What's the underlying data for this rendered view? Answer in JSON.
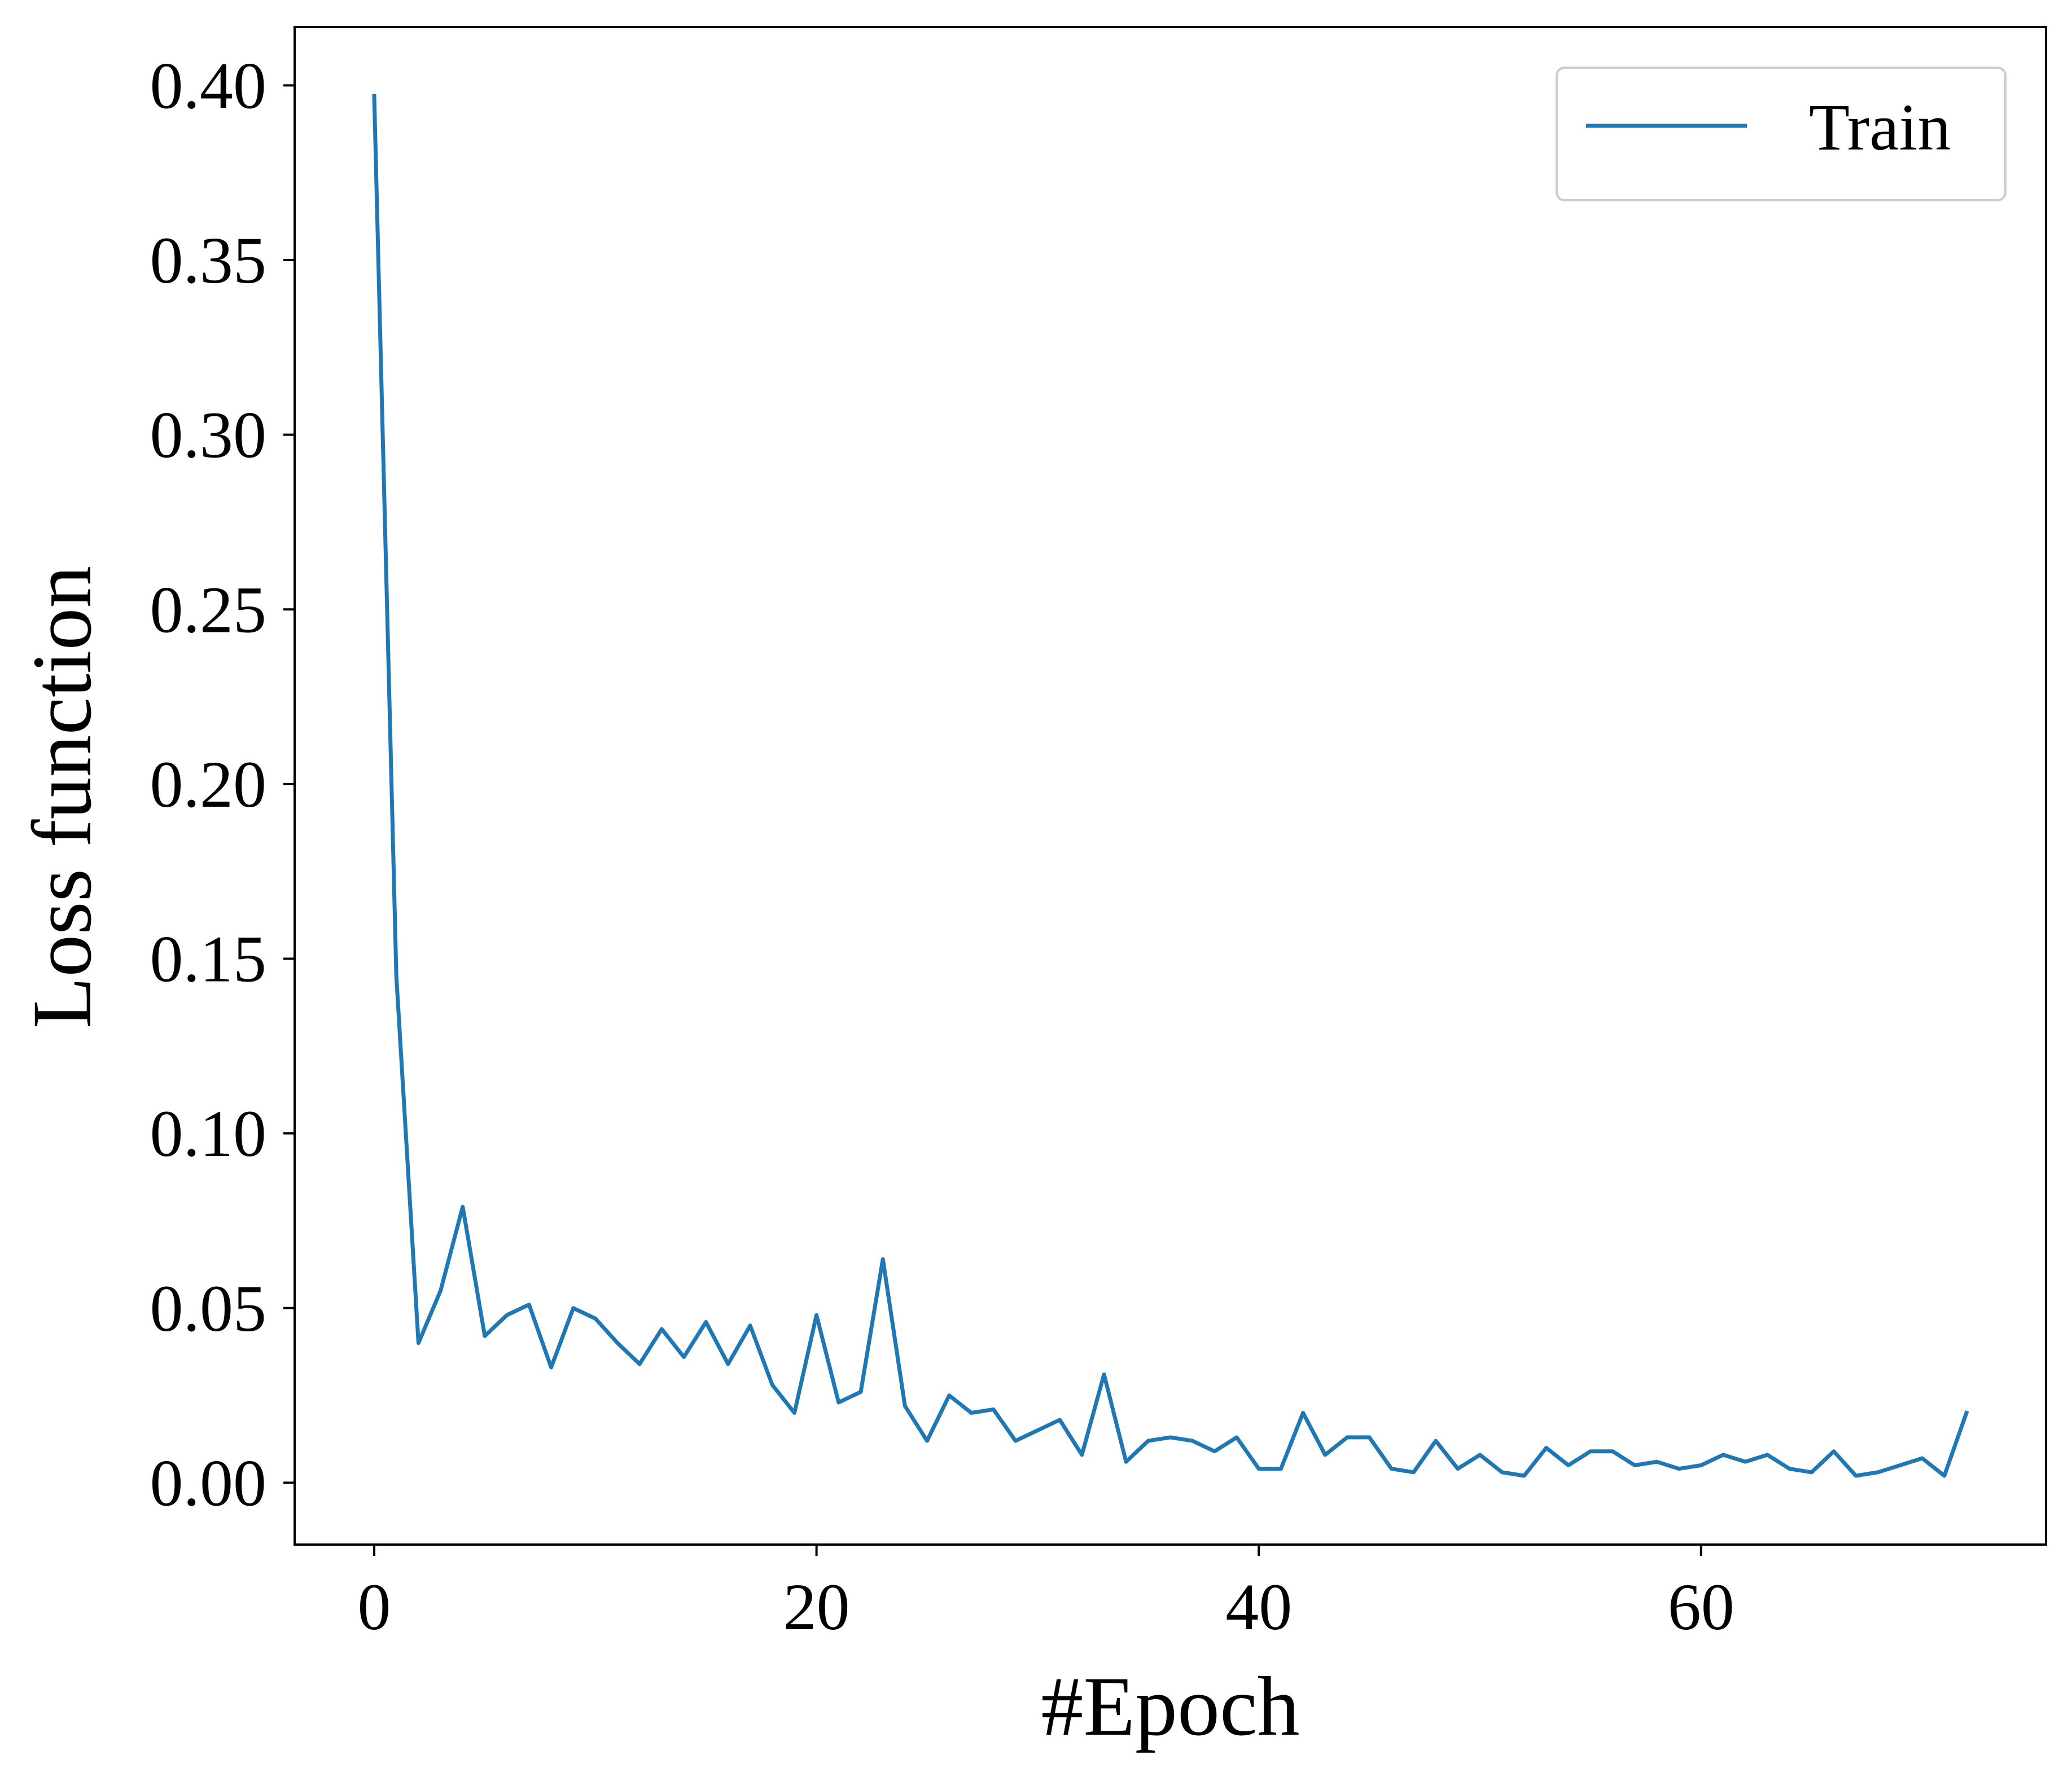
{
  "chart_data": {
    "type": "line",
    "title": "",
    "xlabel": "#Epoch",
    "ylabel": "Loss function",
    "xlim": [
      -3.6,
      75.6
    ],
    "ylim": [
      -0.0177,
      0.4167
    ],
    "xticks": [
      0,
      20,
      40,
      60
    ],
    "xtick_labels": [
      "0",
      "20",
      "40",
      "60"
    ],
    "yticks": [
      0.0,
      0.05,
      0.1,
      0.15,
      0.2,
      0.25,
      0.3,
      0.35,
      0.4
    ],
    "ytick_labels": [
      "0.00",
      "0.05",
      "0.10",
      "0.15",
      "0.20",
      "0.25",
      "0.30",
      "0.35",
      "0.40"
    ],
    "grid": false,
    "legend_position": "top-right",
    "colors": {
      "series": "#1f77b4",
      "axes": "#000000",
      "legend_border": "#cccccc"
    },
    "x": [
      0,
      1,
      2,
      3,
      4,
      5,
      6,
      7,
      8,
      9,
      10,
      11,
      12,
      13,
      14,
      15,
      16,
      17,
      18,
      19,
      20,
      21,
      22,
      23,
      24,
      25,
      26,
      27,
      28,
      29,
      30,
      31,
      32,
      33,
      34,
      35,
      36,
      37,
      38,
      39,
      40,
      41,
      42,
      43,
      44,
      45,
      46,
      47,
      48,
      49,
      50,
      51,
      52,
      53,
      54,
      55,
      56,
      57,
      58,
      59,
      60,
      61,
      62,
      63,
      64,
      65,
      66,
      67,
      68,
      69,
      70,
      71,
      72
    ],
    "series": [
      {
        "name": "Train",
        "values": [
          0.397,
          0.145,
          0.04,
          0.055,
          0.079,
          0.042,
          0.048,
          0.051,
          0.033,
          0.05,
          0.047,
          0.04,
          0.034,
          0.044,
          0.036,
          0.046,
          0.034,
          0.045,
          0.028,
          0.02,
          0.048,
          0.023,
          0.026,
          0.064,
          0.022,
          0.012,
          0.025,
          0.02,
          0.021,
          0.012,
          0.015,
          0.018,
          0.008,
          0.031,
          0.006,
          0.012,
          0.013,
          0.012,
          0.009,
          0.013,
          0.004,
          0.004,
          0.02,
          0.008,
          0.013,
          0.013,
          0.004,
          0.003,
          0.012,
          0.004,
          0.008,
          0.003,
          0.002,
          0.01,
          0.005,
          0.009,
          0.009,
          0.005,
          0.006,
          0.004,
          0.005,
          0.008,
          0.006,
          0.008,
          0.004,
          0.003,
          0.009,
          0.002,
          0.003,
          0.005,
          0.007,
          0.002,
          0.02
        ]
      }
    ]
  }
}
